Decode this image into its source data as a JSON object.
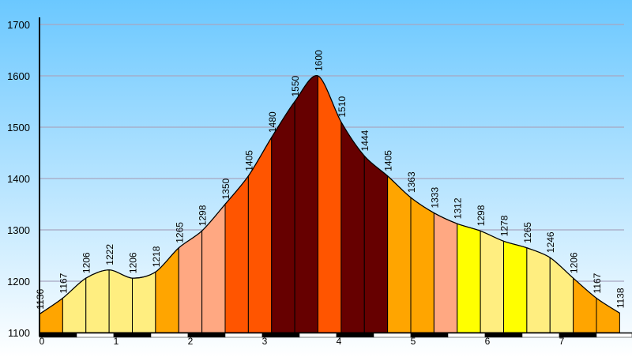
{
  "chart_data": {
    "type": "area",
    "title": "",
    "xlabel": "",
    "ylabel": "",
    "x": [
      0,
      0.3125,
      0.625,
      0.9375,
      1.25,
      1.5625,
      1.875,
      2.1875,
      2.5,
      2.8125,
      3.125,
      3.4375,
      3.75,
      4.0625,
      4.375,
      4.6875,
      5.0,
      5.3125,
      5.625,
      5.9375,
      6.25,
      6.5625,
      6.875,
      7.1875,
      7.5,
      7.8125
    ],
    "elevations": [
      1136,
      1167,
      1206,
      1222,
      1206,
      1218,
      1265,
      1298,
      1350,
      1405,
      1480,
      1550,
      1600,
      1510,
      1444,
      1405,
      1363,
      1333,
      1312,
      1298,
      1278,
      1265,
      1246,
      1206,
      1167,
      1138
    ],
    "segment_colors": [
      "#FFA500",
      "#FFEE80",
      "#FFEE80",
      "#FFEE80",
      "#FFEE80",
      "#FFA500",
      "#FFA882",
      "#FFA882",
      "#FF5500",
      "#FF5500",
      "#660000",
      "#660000",
      "#FF5500",
      "#660000",
      "#660000",
      "#FFA500",
      "#FFA500",
      "#FFA882",
      "#FFFF00",
      "#FFEE80",
      "#FFFF00",
      "#FFEE80",
      "#FFEE80",
      "#FFA500",
      "#FFA500",
      "#FFA882"
    ],
    "ylim": [
      1100,
      1700
    ],
    "yticks": [
      1100,
      1200,
      1300,
      1400,
      1500,
      1600,
      1700
    ],
    "xlim": [
      0,
      7.8125
    ],
    "xticks": [
      0,
      1,
      2,
      3,
      4,
      5,
      6,
      7
    ],
    "grid": true
  },
  "colors": {
    "sky_top": "#6BC8FF",
    "sky_bottom": "#FFFFFF",
    "grid": "#A6A6C0",
    "axis": "#000000"
  }
}
